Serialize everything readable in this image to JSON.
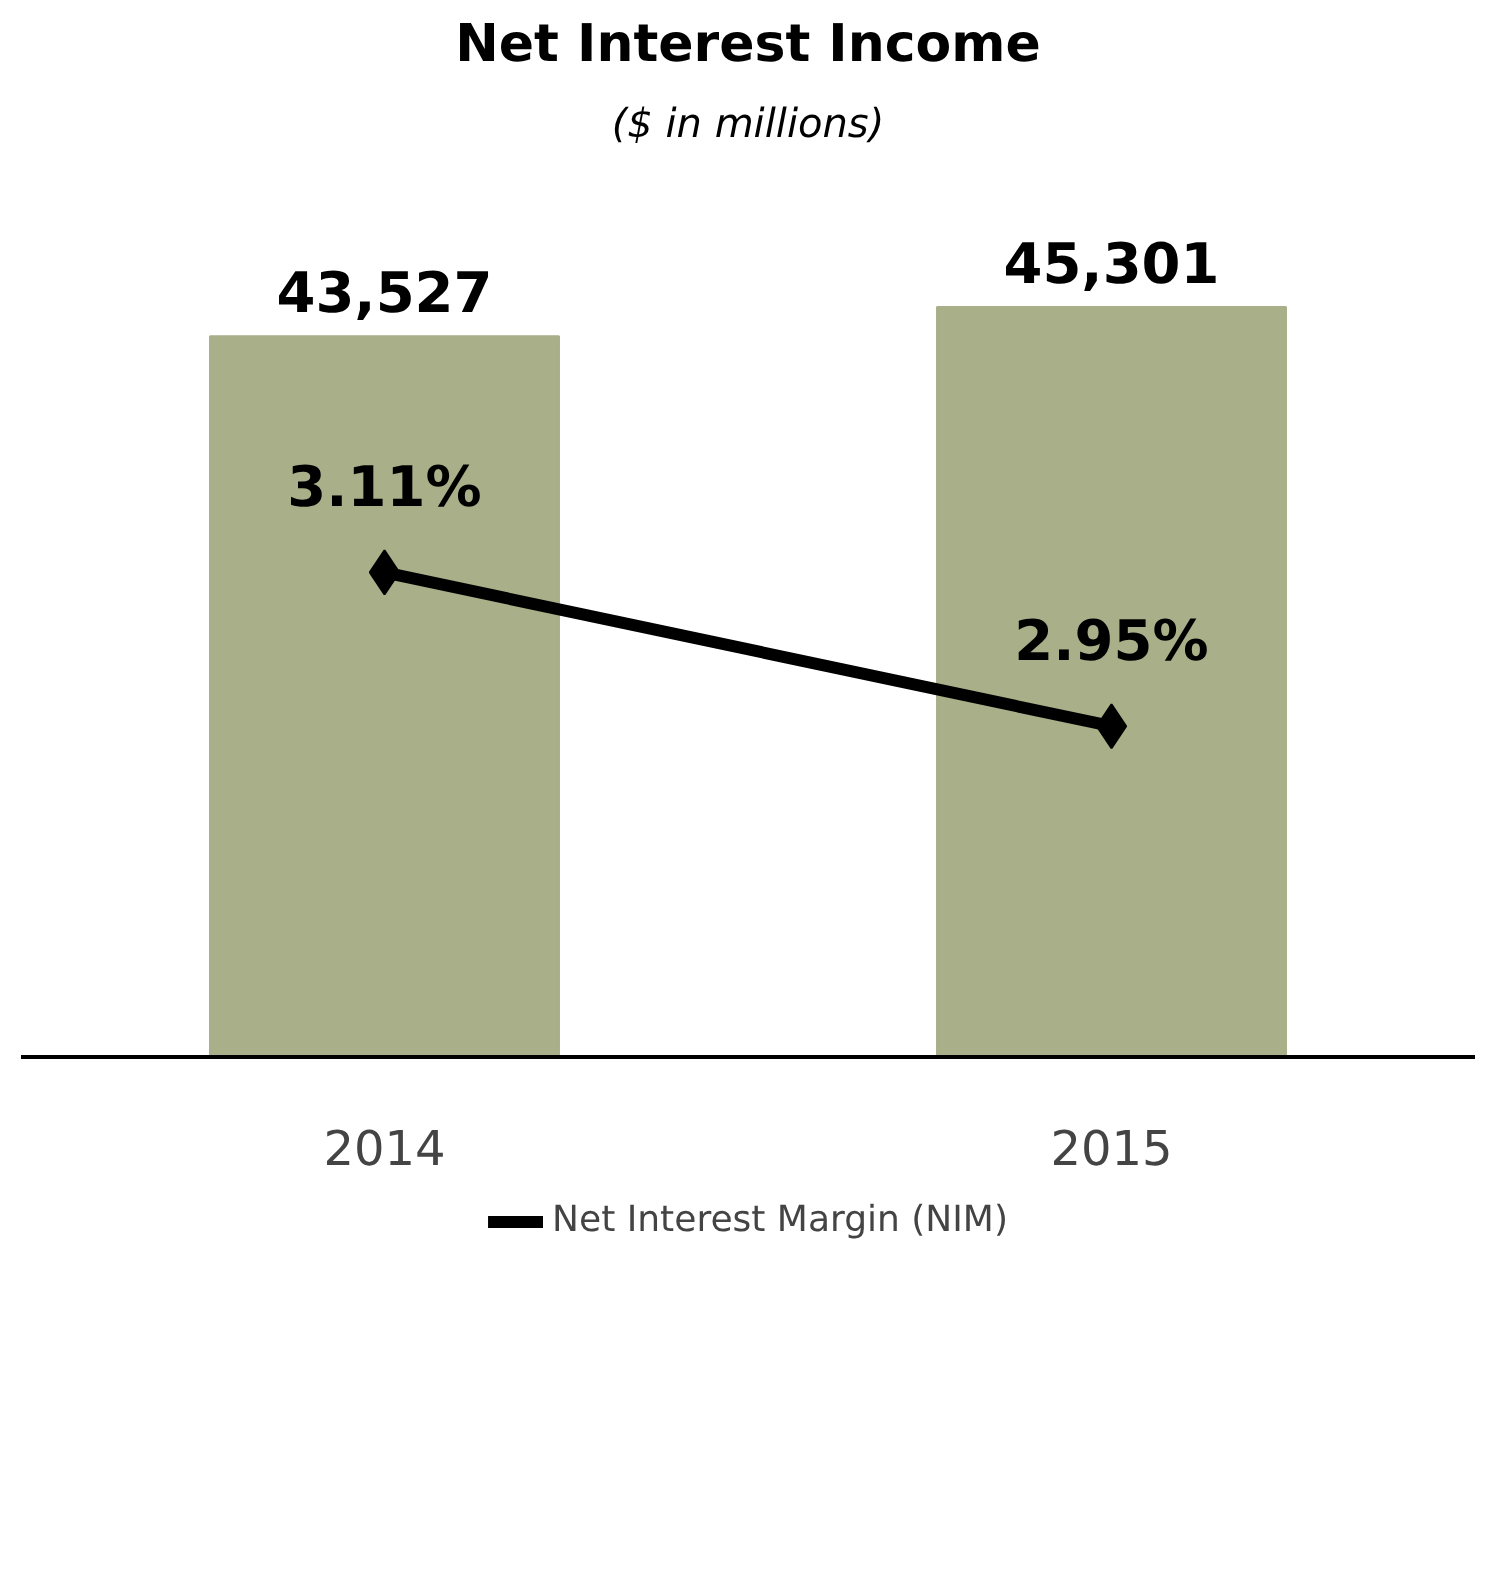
{
  "chart_data": {
    "type": "bar",
    "title": "Net Interest Income",
    "subtitle": "($ in millions)",
    "categories": [
      "2014",
      "2015"
    ],
    "series": [
      {
        "color": "#a9af88",
        "values": [
          43527,
          45301
        ],
        "value_labels": [
          "43,527",
          "45,301"
        ]
      },
      {
        "type": "line",
        "name": "Net Interest Margin (NIM)",
        "color": "#000000",
        "axis": "y2",
        "marker": "diamond",
        "values": [
          3.11,
          2.95
        ],
        "value_labels": [
          "3.11%",
          "2.95%"
        ]
      }
    ],
    "tick_labels": "x",
    "legend": "bottom"
  }
}
